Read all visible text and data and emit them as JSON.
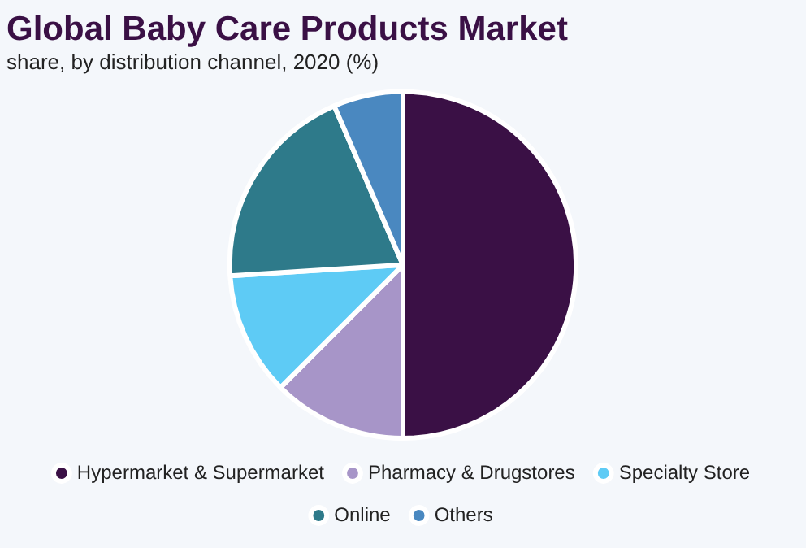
{
  "chart_data": {
    "type": "pie",
    "title": "Global Baby Care Products Market",
    "subtitle": "share, by distribution channel, 2020 (%)",
    "categories": [
      "Hypermarket & Supermarket",
      "Pharmacy & Drugstores",
      "Specialty Store",
      "Online",
      "Others"
    ],
    "values": [
      50,
      12.5,
      11.5,
      19.5,
      6.5
    ],
    "colors": [
      "#3a1045",
      "#a795c8",
      "#5ecbf5",
      "#2e7a8a",
      "#4a88c0"
    ],
    "legend": "bottom"
  }
}
